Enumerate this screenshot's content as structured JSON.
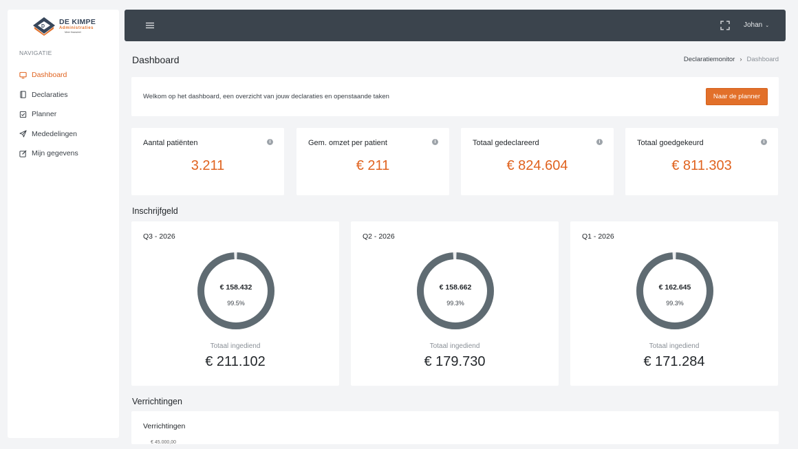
{
  "brand": {
    "title": "DE KIMPE",
    "subtitle": "Administraties",
    "tagline": "Meer financieel",
    "colors": {
      "accent": "#e2702a",
      "dark": "#3b444d",
      "donut": "#5f6b72"
    }
  },
  "sidebar": {
    "heading": "NAVIGATIE",
    "items": [
      {
        "label": "Dashboard",
        "icon": "monitor-icon",
        "active": true
      },
      {
        "label": "Declaraties",
        "icon": "book-icon"
      },
      {
        "label": "Planner",
        "icon": "checkbox-icon"
      },
      {
        "label": "Mededelingen",
        "icon": "send-icon"
      },
      {
        "label": "Mijn gegevens",
        "icon": "edit-icon"
      }
    ]
  },
  "topbar": {
    "user": "Johan"
  },
  "page": {
    "title": "Dashboard",
    "breadcrumb": [
      "Declaratiemonitor",
      "Dashboard"
    ]
  },
  "welcome": {
    "text": "Welkom op het dashboard, een overzicht van jouw declaraties en openstaande taken",
    "button": "Naar de planner"
  },
  "stats": [
    {
      "label": "Aantal patiënten",
      "value": "3.211"
    },
    {
      "label": "Gem. omzet per patient",
      "value": "€ 211"
    },
    {
      "label": "Totaal gedeclareerd",
      "value": "€ 824.604"
    },
    {
      "label": "Totaal goedgekeurd",
      "value": "€ 811.303"
    }
  ],
  "inschrijfgeld": {
    "title": "Inschrijfgeld",
    "sub_label": "Totaal ingediend",
    "quarters": [
      {
        "label": "Q3 - 2026",
        "amount": "€ 158.432",
        "percent": "99.5%",
        "fraction": 0.995,
        "total": "€ 211.102"
      },
      {
        "label": "Q2 - 2026",
        "amount": "€ 158.662",
        "percent": "99.3%",
        "fraction": 0.993,
        "total": "€ 179.730"
      },
      {
        "label": "Q1 - 2026",
        "amount": "€ 162.645",
        "percent": "99.3%",
        "fraction": 0.993,
        "total": "€ 171.284"
      }
    ]
  },
  "verrichtingen": {
    "title": "Verrichtingen",
    "card_title": "Verrichtingen",
    "first_tick": "€ 45.000,00"
  }
}
